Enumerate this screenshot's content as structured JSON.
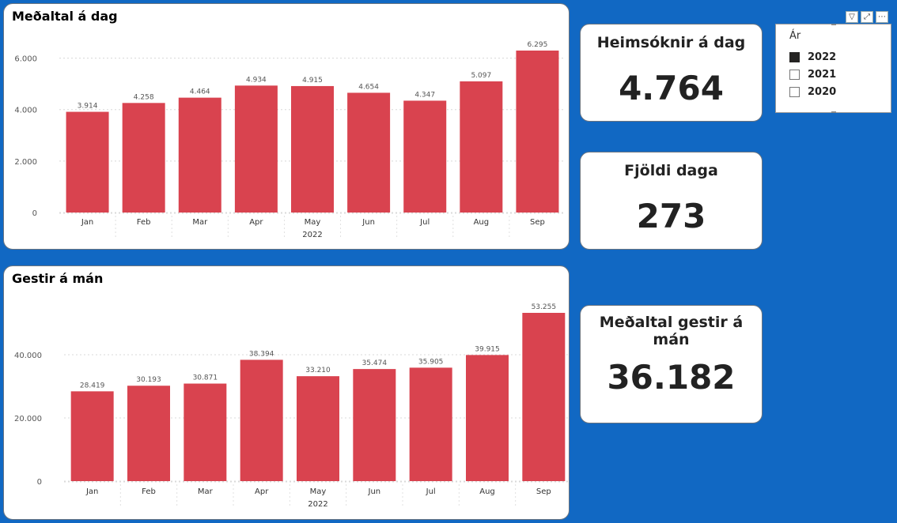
{
  "charts": {
    "daily": {
      "title": "Meðaltal á dag",
      "chart_data": {
        "type": "bar",
        "title": "Meðaltal á dag",
        "categories": [
          "Jan",
          "Feb",
          "Mar",
          "Apr",
          "May",
          "Jun",
          "Jul",
          "Aug",
          "Sep"
        ],
        "values": [
          3914,
          4258,
          4464,
          4934,
          4915,
          4654,
          4347,
          5097,
          6295
        ],
        "value_labels": [
          "3.914",
          "4.258",
          "4.464",
          "4.934",
          "4.915",
          "4.654",
          "4.347",
          "5.097",
          "6.295"
        ],
        "y_ticks": [
          0,
          2000,
          4000,
          6000
        ],
        "y_tick_labels": [
          "0",
          "2.000",
          "4.000",
          "6.000"
        ],
        "ylim": [
          0,
          6295
        ],
        "xlabel": "2022",
        "grid": true,
        "bar_color": "#d9434f"
      }
    },
    "monthly": {
      "title": "Gestir á mán",
      "chart_data": {
        "type": "bar",
        "title": "Gestir á mán",
        "categories": [
          "Jan",
          "Feb",
          "Mar",
          "Apr",
          "May",
          "Jun",
          "Jul",
          "Aug",
          "Sep"
        ],
        "values": [
          28419,
          30193,
          30871,
          38394,
          33210,
          35474,
          35905,
          39915,
          53255
        ],
        "value_labels": [
          "28.419",
          "30.193",
          "30.871",
          "38.394",
          "33.210",
          "35.474",
          "35.905",
          "39.915",
          "53.255"
        ],
        "y_ticks": [
          0,
          20000,
          40000
        ],
        "y_tick_labels": [
          "0",
          "20.000",
          "40.000"
        ],
        "ylim": [
          0,
          53255
        ],
        "xlabel": "2022",
        "grid": true,
        "bar_color": "#d9434f"
      }
    }
  },
  "kpis": {
    "visits_per_day": {
      "label": "Heimsóknir á dag",
      "value": "4.764"
    },
    "num_days": {
      "label": "Fjöldi daga",
      "value": "273"
    },
    "avg_monthly": {
      "label": "Meðaltal gestir á mán",
      "value": "36.182"
    }
  },
  "slicer": {
    "title": "Ár",
    "items": [
      {
        "label": "2022",
        "checked": true
      },
      {
        "label": "2021",
        "checked": false
      },
      {
        "label": "2020",
        "checked": false
      }
    ]
  },
  "visual_header": {
    "icons": [
      "filter-icon",
      "focus-mode-icon",
      "more-options-icon"
    ]
  }
}
